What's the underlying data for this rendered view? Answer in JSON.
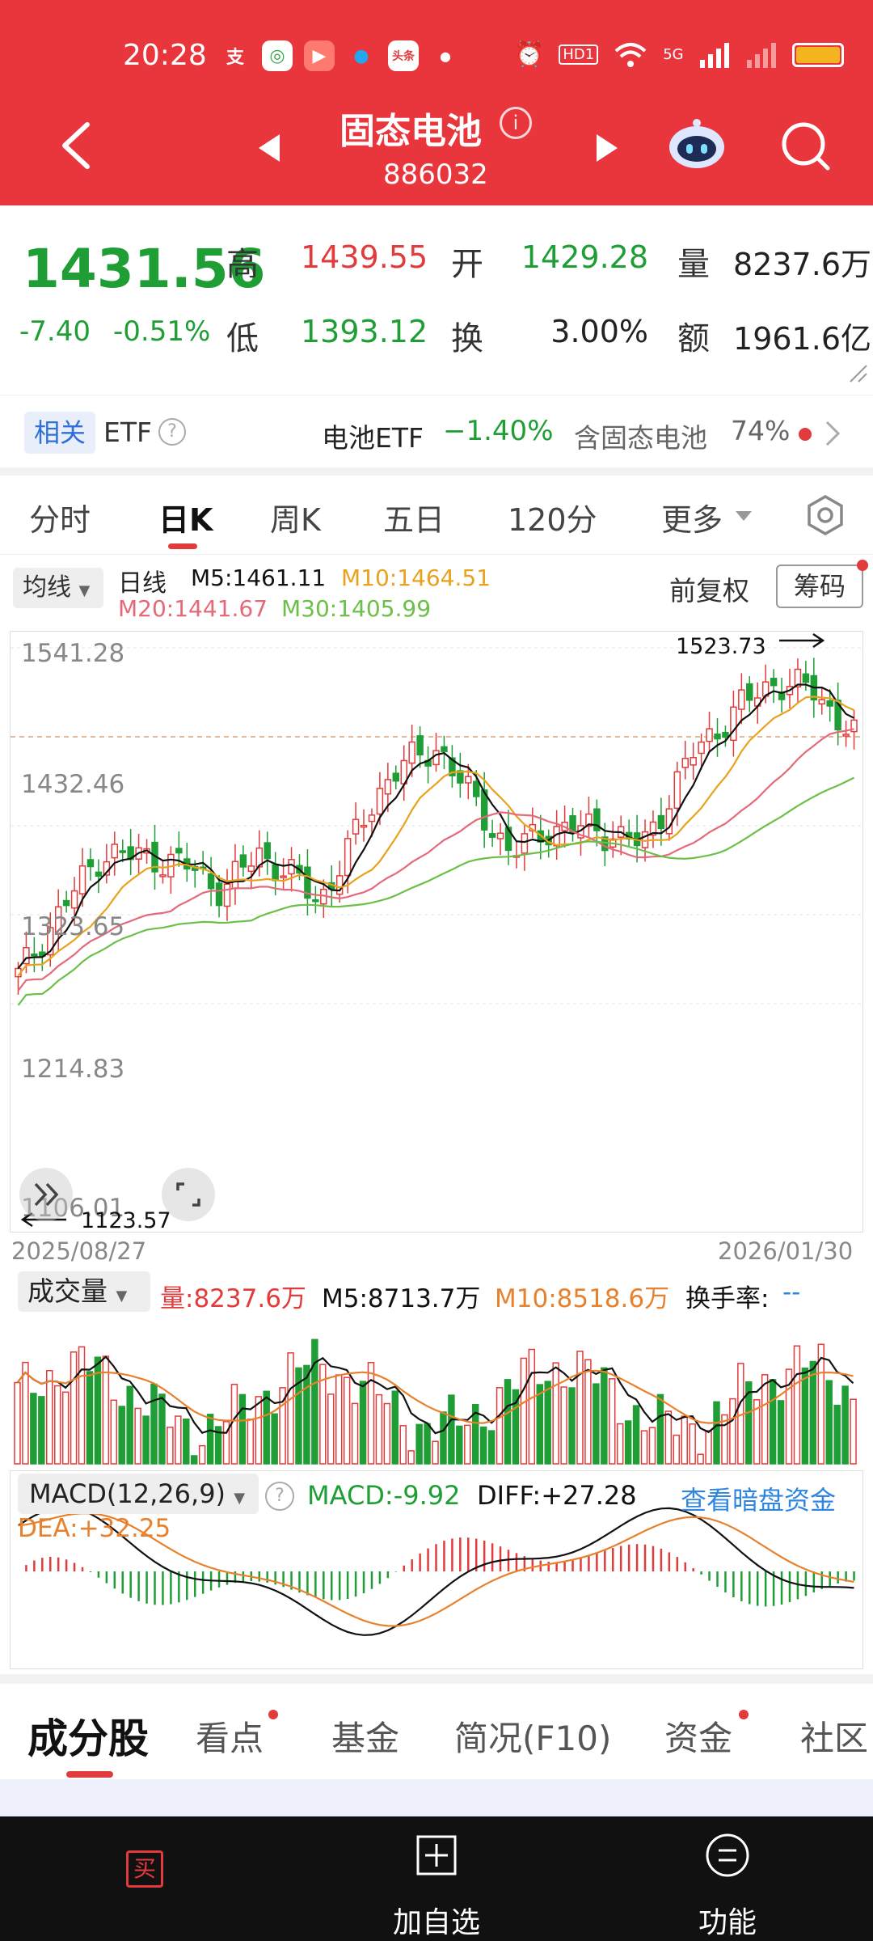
{
  "status_bar": {
    "time": "20:28",
    "network": "5G",
    "hd": "HD1"
  },
  "header": {
    "title": "固态电池",
    "code": "886032"
  },
  "quote": {
    "price": "1431.56",
    "change": "-7.40",
    "change_pct": "-0.51%",
    "high_label": "高",
    "high": "1439.55",
    "open_label": "开",
    "open": "1429.28",
    "volume_label": "量",
    "volume": "8237.6万",
    "low_label": "低",
    "low": "1393.12",
    "turnover_label": "换",
    "turnover": "3.00%",
    "amount_label": "额",
    "amount": "1961.6亿"
  },
  "etf": {
    "tag": "相关",
    "label": "ETF",
    "name": "电池ETF",
    "change": "−1.40%",
    "contains": "含固态电池",
    "contains_pct": "74%"
  },
  "tabs": [
    "分时",
    "日K",
    "周K",
    "五日",
    "120分",
    "更多"
  ],
  "ma": {
    "select": "均线",
    "period": "日线",
    "m5": "M5:1461.11",
    "m10": "M10:1464.51",
    "m20": "M20:1441.67",
    "m30": "M30:1405.99",
    "adjust": "前复权",
    "chips": "筹码"
  },
  "kline": {
    "axis_labels": [
      "1541.28",
      "1432.46",
      "1323.65",
      "1214.83",
      "1106.01"
    ],
    "max_label": "1523.73",
    "min_label": "1123.57",
    "date_start": "2025/08/27",
    "date_end": "2026/01/30"
  },
  "volume": {
    "select": "成交量",
    "vol": "量:8237.6万",
    "m5": "M5:8713.7万",
    "m10": "M10:8518.6万",
    "turnover": "换手率:",
    "turnover_val": "--"
  },
  "macd": {
    "select": "MACD(12,26,9)",
    "macd": "MACD:-9.92",
    "diff": "DIFF:+27.28",
    "dea": "DEA:+32.25",
    "link": "查看暗盘资金"
  },
  "bottom_tabs": [
    "成分股",
    "看点",
    "基金",
    "简况(F10)",
    "资金",
    "社区"
  ],
  "bottom_bar": {
    "buy": "买",
    "add": "加自选",
    "func": "功能"
  },
  "colors": {
    "up": "#e23b3b",
    "down": "#1e9e35",
    "header": "#e9363d",
    "ma5": "#111111",
    "ma10": "#e8a21d",
    "ma20": "#e46a7a",
    "ma30": "#6cc04a"
  }
}
